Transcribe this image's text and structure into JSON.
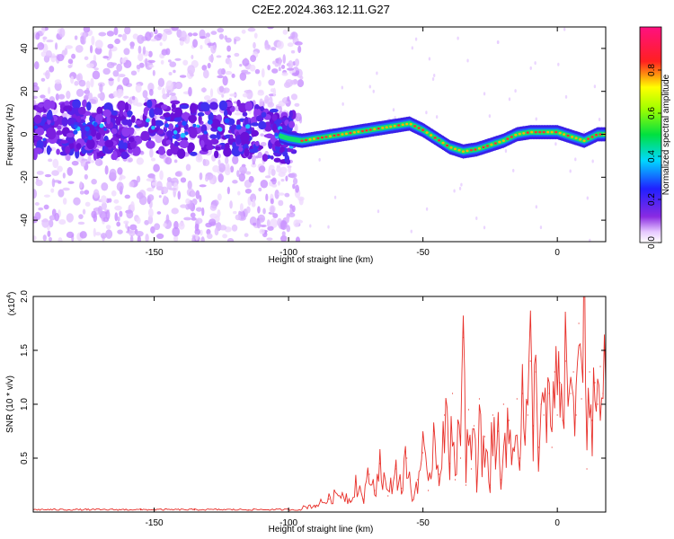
{
  "title": "C2E2.2024.363.12.11.G27",
  "chart_data": [
    {
      "type": "heatmap",
      "xlabel": "Height of straight line (km)",
      "ylabel": "Frequency (Hz)",
      "xlim": [
        -195,
        18
      ],
      "ylim": [
        -50,
        50
      ],
      "x_ticks": [
        -150,
        -100,
        -50,
        0
      ],
      "y_ticks": [
        -40,
        -20,
        0,
        20,
        40
      ],
      "x_tick_labels": [
        "-150",
        "-100",
        "-50",
        "0"
      ],
      "y_tick_labels": [
        "-40",
        "-20",
        "0",
        "20",
        "40"
      ],
      "colorbar": {
        "label": "Normalized spectral amplitude",
        "range": [
          0,
          1
        ],
        "ticks": [
          0,
          0.2,
          0.4,
          0.6,
          0.8
        ],
        "tick_labels": [
          "0.0",
          "0.2",
          "0.4",
          "0.6",
          "0.8"
        ],
        "colormap": "rainbow (white, purple, blue, cyan, green, yellow, red, magenta)"
      },
      "ridge": {
        "description_units": "frequency center (Hz) along height (km)",
        "x": [
          -195,
          -180,
          -165,
          -150,
          -135,
          -120,
          -105,
          -100,
          -95,
          -90,
          -85,
          -80,
          -75,
          -70,
          -65,
          -60,
          -55,
          -50,
          -45,
          -40,
          -35,
          -30,
          -25,
          -20,
          -15,
          -10,
          -5,
          0,
          5,
          10,
          15,
          18
        ],
        "y": [
          2,
          3,
          1,
          4,
          2,
          3,
          0,
          -2,
          -3,
          -2,
          -1,
          0,
          1,
          2,
          3,
          4,
          5,
          2,
          -2,
          -6,
          -8,
          -7,
          -5,
          -3,
          0,
          1,
          1,
          1,
          -1,
          -3,
          0,
          0
        ]
      }
    },
    {
      "type": "line",
      "xlabel": "Height of straight line (km)",
      "ylabel": "SNR (10 * v/v)",
      "y_scale_label": "(x10",
      "y_scale_exponent": "4",
      "xlim": [
        -195,
        18
      ],
      "ylim": [
        0,
        2.0
      ],
      "x_ticks": [
        -150,
        -100,
        -50,
        0
      ],
      "y_ticks": [
        0.5,
        1.0,
        1.5,
        2.0
      ],
      "x_tick_labels": [
        "-150",
        "-100",
        "-50",
        "0"
      ],
      "y_tick_labels": [
        "0.5",
        "1.0",
        "1.5",
        "2.0"
      ],
      "series": [
        {
          "color": "#e8302a",
          "x": [
            -195,
            -175,
            -155,
            -135,
            -115,
            -100,
            -90,
            -85,
            -80,
            -77,
            -75,
            -72,
            -70,
            -68,
            -66,
            -63,
            -60,
            -58,
            -56,
            -54,
            -52,
            -50,
            -48,
            -46,
            -44,
            -42,
            -40,
            -39,
            -38,
            -37,
            -36,
            -35,
            -34,
            -33,
            -32,
            -31,
            -30,
            -29,
            -28,
            -27,
            -26,
            -25,
            -24,
            -23,
            -22,
            -21,
            -20,
            -19,
            -18,
            -17,
            -16,
            -15,
            -14,
            -13,
            -12,
            -11,
            -10,
            -9,
            -8,
            -7,
            -6,
            -5,
            -4,
            -3,
            -2,
            -1,
            0,
            1,
            2,
            3,
            4,
            5,
            6,
            7,
            8,
            9,
            10,
            11,
            12,
            13,
            14,
            15,
            16,
            17,
            18
          ],
          "y": [
            0.02,
            0.02,
            0.02,
            0.02,
            0.02,
            0.03,
            0.06,
            0.12,
            0.18,
            0.1,
            0.28,
            0.12,
            0.35,
            0.2,
            0.45,
            0.15,
            0.4,
            0.22,
            0.5,
            0.1,
            0.3,
            0.55,
            0.2,
            0.75,
            0.35,
            0.9,
            0.45,
            1.1,
            0.3,
            0.85,
            0.5,
            1.62,
            0.25,
            0.95,
            0.4,
            0.8,
            0.2,
            1.05,
            0.35,
            0.7,
            0.55,
            0.25,
            0.9,
            0.4,
            0.75,
            0.3,
            1.0,
            0.5,
            0.85,
            0.45,
            0.6,
            1.05,
            0.5,
            1.1,
            0.7,
            0.9,
            1.4,
            0.8,
            1.3,
            0.6,
            1.0,
            0.9,
            0.75,
            1.1,
            0.6,
            1.3,
            0.9,
            1.2,
            0.85,
            1.4,
            1.0,
            1.1,
            1.3,
            0.9,
            1.75,
            1.05,
            2.0,
            0.4,
            1.3,
            0.85,
            1.2,
            1.0,
            1.35,
            1.1,
            1.2
          ]
        }
      ]
    }
  ]
}
